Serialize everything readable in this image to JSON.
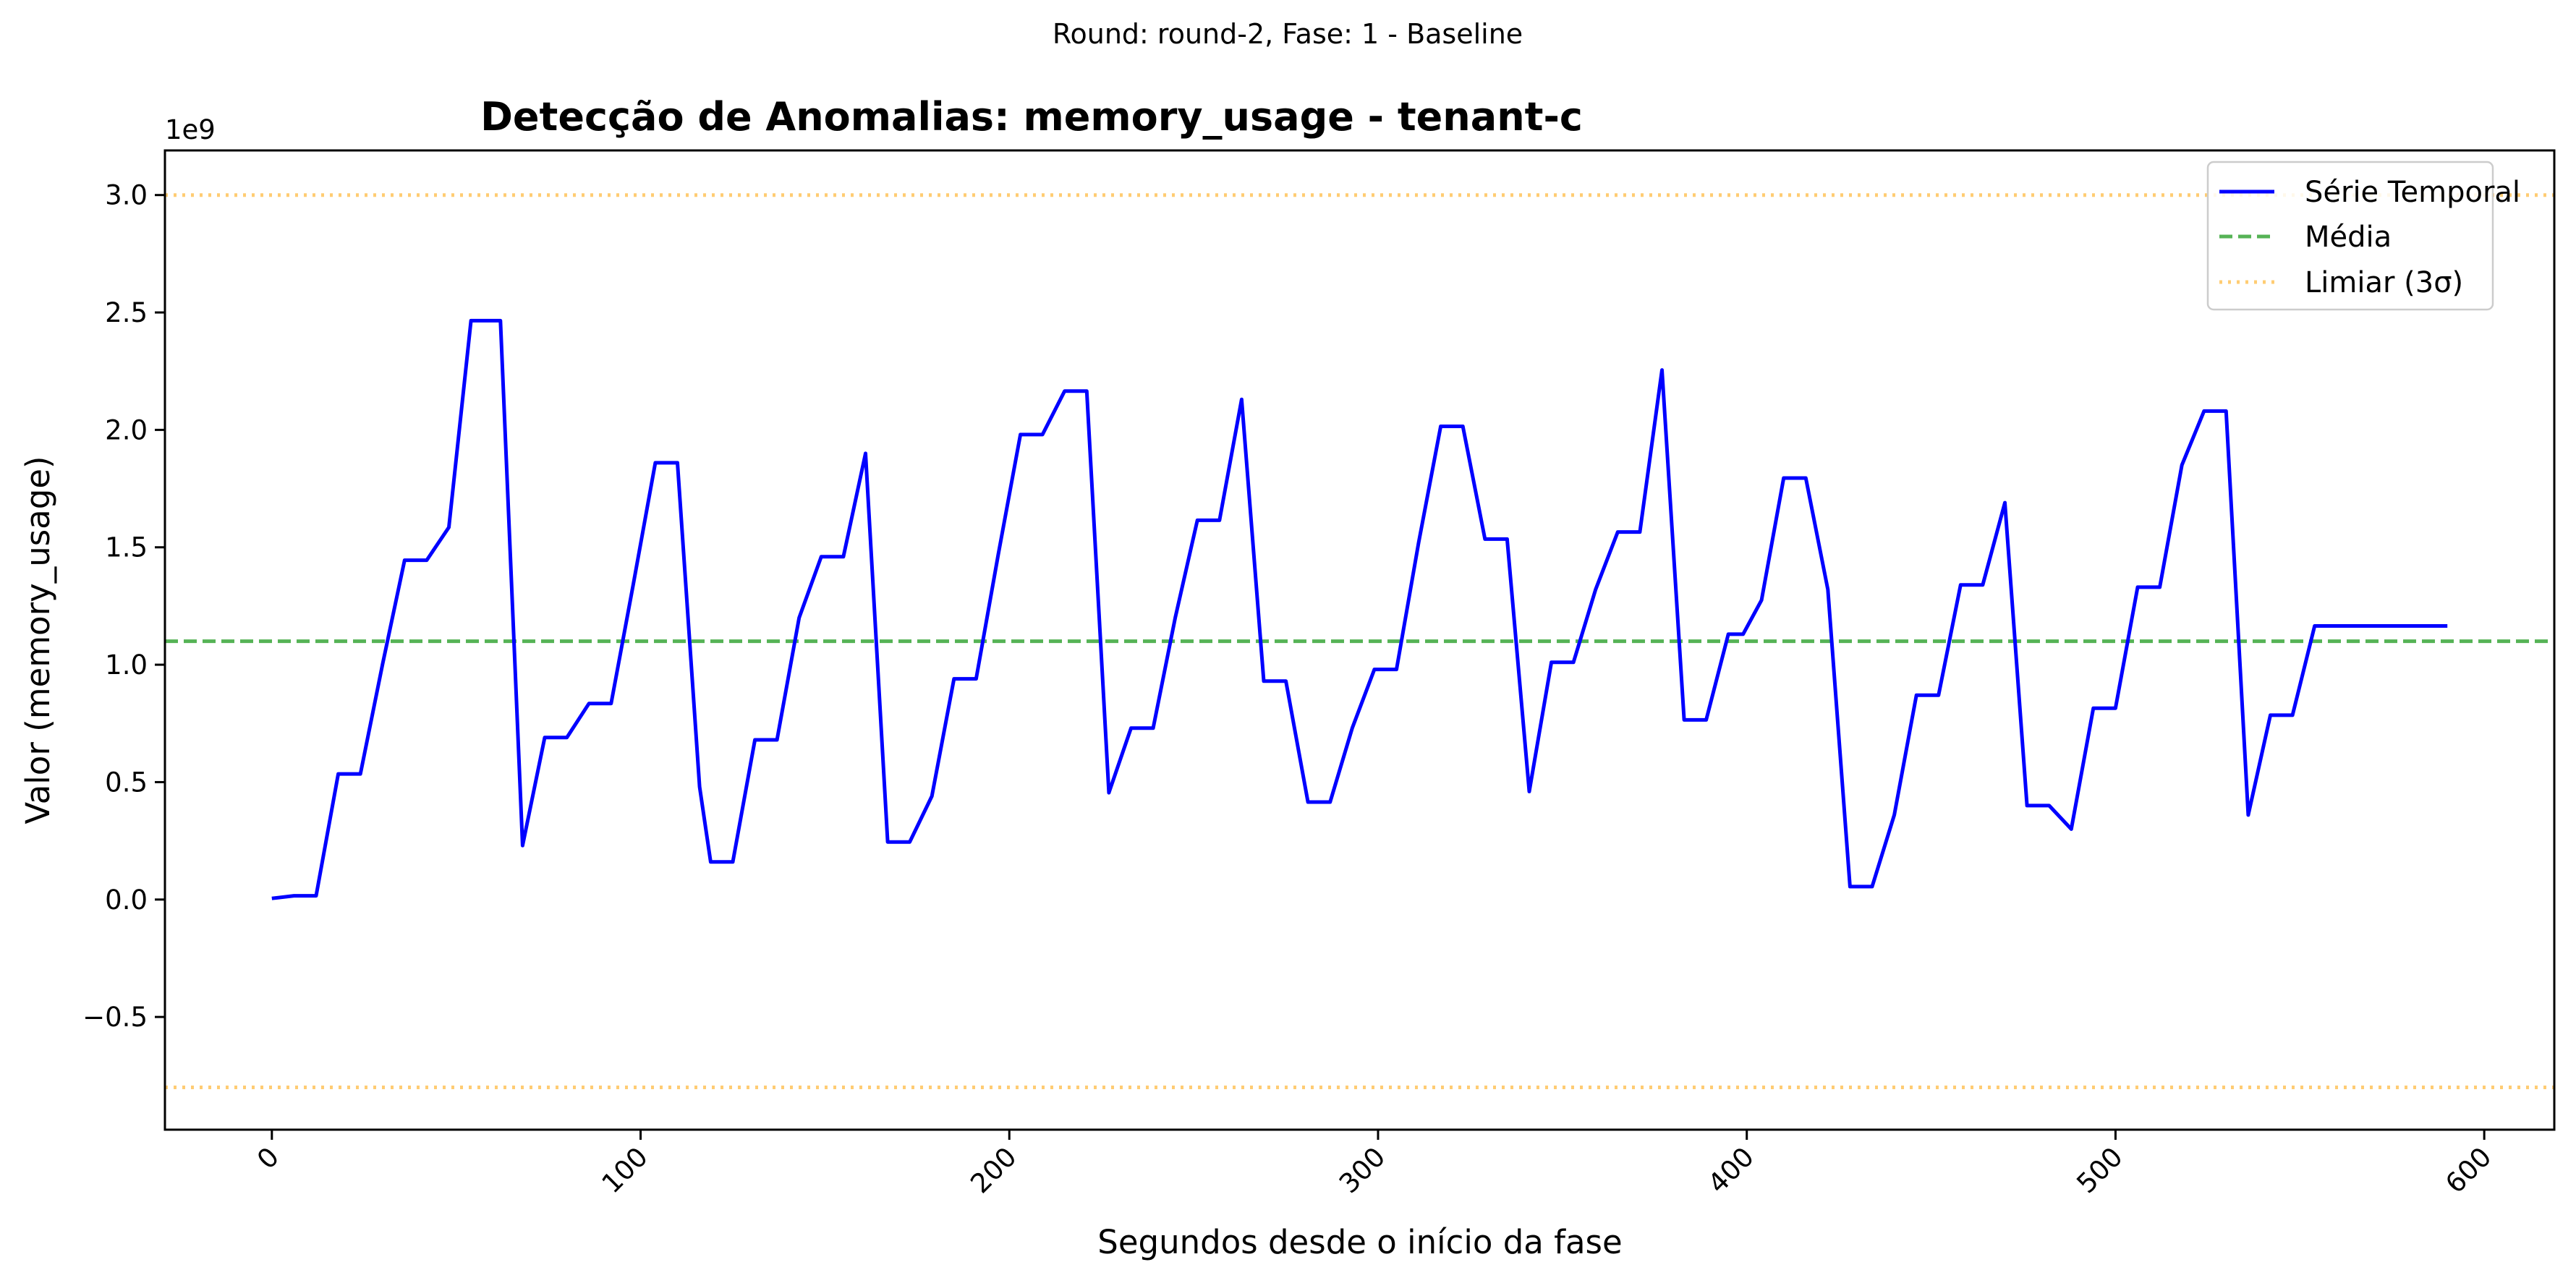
{
  "chart_data": {
    "type": "line",
    "suptitle": "Round: round-2, Fase: 1 - Baseline",
    "title": "Detecção de Anomalias: memory_usage - tenant-c",
    "xlabel": "Segundos desde o início da fase",
    "ylabel": "Valor (memory_usage)",
    "y_offset_label": "1e9",
    "xlim": [
      -29,
      619
    ],
    "ylim": [
      -0.98,
      3.19
    ],
    "x_ticks": [
      0,
      100,
      200,
      300,
      400,
      500,
      600
    ],
    "x_tick_labels": [
      "0",
      "100",
      "200",
      "300",
      "400",
      "500",
      "600"
    ],
    "y_ticks": [
      -0.5,
      0.0,
      0.5,
      1.0,
      1.5,
      2.0,
      2.5,
      3.0
    ],
    "y_tick_labels": [
      "−0.5",
      "0.0",
      "0.5",
      "1.0",
      "1.5",
      "2.0",
      "2.5",
      "3.0"
    ],
    "grid": false,
    "legend_position": "top-right",
    "series": [
      {
        "name": "Série Temporal",
        "style": "solid",
        "color": "#0000ff",
        "x": [
          0,
          6,
          12,
          18,
          24,
          30,
          36,
          42,
          48,
          54,
          56,
          62,
          68,
          74,
          80,
          86,
          92,
          98,
          104,
          110,
          116,
          119,
          125,
          131,
          137,
          143,
          149,
          155,
          161,
          167,
          173,
          179,
          185,
          191,
          197,
          203,
          209,
          215,
          221,
          227,
          233,
          239,
          245,
          251,
          257,
          263,
          269,
          275,
          281,
          287,
          293,
          299,
          305,
          311,
          317,
          323,
          329,
          335,
          341,
          347,
          353,
          359,
          365,
          371,
          377,
          383,
          389,
          395,
          399,
          404,
          410,
          416,
          422,
          428,
          434,
          440,
          446,
          452,
          458,
          464,
          470,
          476,
          482,
          488,
          494,
          500,
          506,
          512,
          518,
          524,
          530,
          536,
          542,
          548,
          554,
          560,
          566,
          572,
          578,
          584,
          590
        ],
        "values": [
          0.005,
          0.016,
          0.016,
          0.535,
          0.535,
          1.0,
          1.445,
          1.445,
          1.585,
          2.465,
          2.465,
          2.465,
          0.23,
          0.69,
          0.69,
          0.835,
          0.835,
          1.34,
          1.86,
          1.86,
          0.48,
          0.16,
          0.16,
          0.68,
          0.68,
          1.2,
          1.46,
          1.46,
          1.9,
          0.245,
          0.245,
          0.44,
          0.94,
          0.94,
          1.47,
          1.98,
          1.98,
          2.165,
          2.165,
          0.455,
          0.73,
          0.73,
          1.2,
          1.615,
          1.615,
          2.13,
          0.93,
          0.93,
          0.415,
          0.415,
          0.73,
          0.98,
          0.98,
          1.52,
          2.015,
          2.015,
          1.535,
          1.535,
          0.46,
          1.01,
          1.01,
          1.32,
          1.565,
          1.565,
          2.255,
          0.765,
          0.765,
          1.13,
          1.13,
          1.275,
          1.795,
          1.795,
          1.32,
          0.055,
          0.055,
          0.36,
          0.87,
          0.87,
          1.34,
          1.34,
          1.69,
          0.4,
          0.4,
          0.3,
          0.815,
          0.815,
          1.33,
          1.33,
          1.85,
          2.08,
          2.08,
          0.36,
          0.785,
          0.785,
          1.165,
          1.165,
          1.165,
          1.165,
          1.165,
          1.165,
          1.165
        ]
      },
      {
        "name": "Média",
        "style": "dashed",
        "color": "#2ca02c",
        "y": 1.1
      },
      {
        "name": "Limiar (3σ)",
        "style": "dotted",
        "color": "#ffbf50",
        "y": [
          3.0,
          -0.8
        ]
      }
    ]
  }
}
